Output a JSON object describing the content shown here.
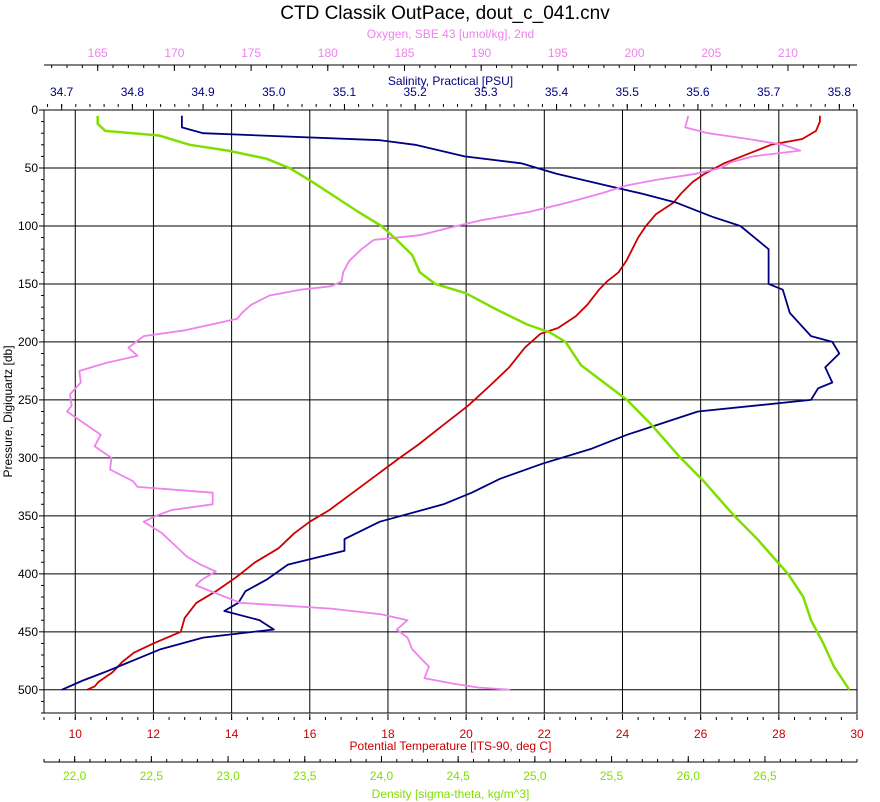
{
  "chart_data": {
    "type": "line",
    "title": "CTD Classik OutPace, dout_c_041.cnv",
    "grid": true,
    "y_axis": {
      "label": "Pressure, Digiquartz [db]",
      "range": [
        0,
        520
      ],
      "reversed": true,
      "ticks": [
        "0",
        "50",
        "100",
        "150",
        "200",
        "250",
        "300",
        "350",
        "400",
        "450",
        "500"
      ],
      "tick_values": [
        0,
        50,
        100,
        150,
        200,
        250,
        300,
        350,
        400,
        450,
        500
      ]
    },
    "x_axes": [
      {
        "id": "oxygen",
        "label": "Oxygen, SBE 43 [umol/kg], 2nd",
        "color": "#ee82ee",
        "position": "top-outer",
        "range": [
          161.5,
          214.5
        ],
        "ticks": [
          "165",
          "170",
          "175",
          "180",
          "185",
          "190",
          "195",
          "200",
          "205",
          "210"
        ],
        "tick_values": [
          165,
          170,
          175,
          180,
          185,
          190,
          195,
          200,
          205,
          210
        ]
      },
      {
        "id": "salinity",
        "label": "Salinity, Practical [PSU]",
        "color": "#000080",
        "position": "top-inner",
        "range": [
          34.675,
          35.825
        ],
        "ticks": [
          "34.7",
          "34.8",
          "34.9",
          "35.0",
          "35.1",
          "35.2",
          "35.3",
          "35.4",
          "35.5",
          "35.6",
          "35.7",
          "35.8"
        ],
        "tick_values": [
          34.7,
          34.8,
          34.9,
          35.0,
          35.1,
          35.2,
          35.3,
          35.4,
          35.5,
          35.6,
          35.7,
          35.8
        ]
      },
      {
        "id": "temperature",
        "label": "Potential Temperature [ITS-90, deg C]",
        "color": "#cc0000",
        "position": "bottom-inner",
        "range": [
          9.2,
          30
        ],
        "ticks": [
          "10",
          "12",
          "14",
          "16",
          "18",
          "20",
          "22",
          "24",
          "26",
          "28",
          "30"
        ],
        "tick_values": [
          10,
          12,
          14,
          16,
          18,
          20,
          22,
          24,
          26,
          28,
          30
        ]
      },
      {
        "id": "density",
        "label": "Density [sigma-theta, kg/m^3]",
        "color": "#7fe000",
        "position": "bottom-outer",
        "range": [
          21.8,
          27.1
        ],
        "ticks": [
          "22,0",
          "22,5",
          "23,0",
          "23,5",
          "24,0",
          "24,5",
          "25,0",
          "25,5",
          "26,0",
          "26,5"
        ],
        "tick_values": [
          22.0,
          22.5,
          23.0,
          23.5,
          24.0,
          24.5,
          25.0,
          25.5,
          26.0,
          26.5
        ]
      }
    ],
    "series": [
      {
        "axis": "temperature",
        "color": "#cc0000",
        "points": [
          [
            29.05,
            5
          ],
          [
            29.05,
            10
          ],
          [
            28.95,
            18
          ],
          [
            28.6,
            25
          ],
          [
            27.8,
            30
          ],
          [
            27.2,
            38
          ],
          [
            26.6,
            46
          ],
          [
            26.1,
            55
          ],
          [
            25.8,
            62
          ],
          [
            25.5,
            72
          ],
          [
            25.3,
            80
          ],
          [
            24.85,
            90
          ],
          [
            24.6,
            100
          ],
          [
            24.4,
            110
          ],
          [
            24.25,
            120
          ],
          [
            24.1,
            130
          ],
          [
            23.9,
            140
          ],
          [
            23.6,
            148
          ],
          [
            23.4,
            155
          ],
          [
            23.1,
            168
          ],
          [
            22.8,
            178
          ],
          [
            22.35,
            188
          ],
          [
            21.9,
            193
          ],
          [
            21.5,
            205
          ],
          [
            21.1,
            222
          ],
          [
            20.6,
            238
          ],
          [
            20.05,
            255
          ],
          [
            19.4,
            272
          ],
          [
            18.8,
            288
          ],
          [
            18.3,
            300
          ],
          [
            17.7,
            315
          ],
          [
            17.1,
            330
          ],
          [
            16.5,
            345
          ],
          [
            16.0,
            355
          ],
          [
            15.6,
            365
          ],
          [
            15.2,
            378
          ],
          [
            14.6,
            390
          ],
          [
            14.15,
            402
          ],
          [
            13.6,
            415
          ],
          [
            13.1,
            425
          ],
          [
            12.8,
            438
          ],
          [
            12.7,
            450
          ],
          [
            12.0,
            460
          ],
          [
            11.5,
            468
          ],
          [
            11.2,
            476
          ],
          [
            10.95,
            485
          ],
          [
            10.6,
            493
          ],
          [
            10.5,
            497
          ],
          [
            10.3,
            500
          ]
        ]
      },
      {
        "axis": "salinity",
        "color": "#000080",
        "points": [
          [
            34.87,
            5
          ],
          [
            34.87,
            15
          ],
          [
            34.9,
            20
          ],
          [
            35.15,
            26
          ],
          [
            35.2,
            30
          ],
          [
            35.27,
            40
          ],
          [
            35.35,
            46
          ],
          [
            35.4,
            55
          ],
          [
            35.47,
            65
          ],
          [
            35.52,
            72
          ],
          [
            35.57,
            80
          ],
          [
            35.62,
            92
          ],
          [
            35.66,
            100
          ],
          [
            35.68,
            110
          ],
          [
            35.7,
            120
          ],
          [
            35.7,
            135
          ],
          [
            35.7,
            150
          ],
          [
            35.72,
            155
          ],
          [
            35.73,
            175
          ],
          [
            35.745,
            185
          ],
          [
            35.76,
            195
          ],
          [
            35.79,
            200
          ],
          [
            35.8,
            210
          ],
          [
            35.78,
            222
          ],
          [
            35.79,
            235
          ],
          [
            35.77,
            240
          ],
          [
            35.76,
            250
          ],
          [
            35.6,
            260
          ],
          [
            35.55,
            270
          ],
          [
            35.5,
            280
          ],
          [
            35.45,
            292
          ],
          [
            35.38,
            305
          ],
          [
            35.32,
            318
          ],
          [
            35.28,
            330
          ],
          [
            35.24,
            340
          ],
          [
            35.15,
            355
          ],
          [
            35.1,
            370
          ],
          [
            35.1,
            380
          ],
          [
            35.02,
            392
          ],
          [
            34.99,
            405
          ],
          [
            34.96,
            415
          ],
          [
            34.95,
            425
          ],
          [
            34.93,
            432
          ],
          [
            34.98,
            440
          ],
          [
            35.0,
            448
          ],
          [
            34.9,
            455
          ],
          [
            34.84,
            465
          ],
          [
            34.8,
            475
          ],
          [
            34.76,
            485
          ],
          [
            34.73,
            492
          ],
          [
            34.7,
            500
          ]
        ]
      },
      {
        "axis": "oxygen",
        "color": "#ee82ee",
        "points": [
          [
            203.5,
            5
          ],
          [
            203.3,
            15
          ],
          [
            204.8,
            20
          ],
          [
            207.4,
            25
          ],
          [
            209.7,
            30
          ],
          [
            210.8,
            35
          ],
          [
            207.7,
            40
          ],
          [
            206.3,
            45
          ],
          [
            205.6,
            50
          ],
          [
            204.0,
            55
          ],
          [
            201.5,
            60
          ],
          [
            199.5,
            65
          ],
          [
            197.8,
            72
          ],
          [
            195.6,
            80
          ],
          [
            193.1,
            88
          ],
          [
            190.0,
            95
          ],
          [
            187.8,
            102
          ],
          [
            186.0,
            108
          ],
          [
            183.0,
            112
          ],
          [
            182.2,
            120
          ],
          [
            181.4,
            130
          ],
          [
            181.0,
            140
          ],
          [
            180.9,
            148
          ],
          [
            180.2,
            152
          ],
          [
            178.2,
            155
          ],
          [
            176.2,
            160
          ],
          [
            175.0,
            168
          ],
          [
            174.4,
            175
          ],
          [
            174.1,
            180
          ],
          [
            170.7,
            190
          ],
          [
            168.0,
            195
          ],
          [
            167.0,
            205
          ],
          [
            167.6,
            212
          ],
          [
            165.6,
            218
          ],
          [
            163.8,
            225
          ],
          [
            163.9,
            235
          ],
          [
            163.2,
            245
          ],
          [
            163.3,
            255
          ],
          [
            163.0,
            260
          ],
          [
            164.1,
            270
          ],
          [
            165.2,
            280
          ],
          [
            164.8,
            290
          ],
          [
            165.9,
            300
          ],
          [
            165.8,
            310
          ],
          [
            167.3,
            320
          ],
          [
            167.6,
            325
          ],
          [
            172.5,
            330
          ],
          [
            172.5,
            340
          ],
          [
            169.8,
            345
          ],
          [
            168.8,
            350
          ],
          [
            168.0,
            355
          ],
          [
            169.2,
            365
          ],
          [
            170.0,
            375
          ],
          [
            170.8,
            385
          ],
          [
            171.7,
            392
          ],
          [
            172.7,
            398
          ],
          [
            171.8,
            405
          ],
          [
            171.4,
            410
          ],
          [
            174.3,
            425
          ],
          [
            180.2,
            430
          ],
          [
            183.5,
            435
          ],
          [
            185.2,
            440
          ],
          [
            184.5,
            448
          ],
          [
            185.2,
            455
          ],
          [
            185.5,
            465
          ],
          [
            186.0,
            472
          ],
          [
            186.6,
            480
          ],
          [
            186.3,
            490
          ],
          [
            188.3,
            495
          ],
          [
            189.8,
            498
          ],
          [
            191.9,
            500
          ]
        ]
      },
      {
        "axis": "density",
        "color": "#7fe000",
        "points": [
          [
            22.15,
            5
          ],
          [
            22.15,
            12
          ],
          [
            22.2,
            18
          ],
          [
            22.55,
            22
          ],
          [
            22.75,
            30
          ],
          [
            23.0,
            35
          ],
          [
            23.25,
            42
          ],
          [
            23.4,
            50
          ],
          [
            23.55,
            62
          ],
          [
            23.7,
            75
          ],
          [
            23.85,
            88
          ],
          [
            24.0,
            100
          ],
          [
            24.1,
            112
          ],
          [
            24.2,
            125
          ],
          [
            24.25,
            140
          ],
          [
            24.35,
            150
          ],
          [
            24.55,
            158
          ],
          [
            24.75,
            172
          ],
          [
            24.95,
            185
          ],
          [
            25.1,
            192
          ],
          [
            25.2,
            200
          ],
          [
            25.3,
            220
          ],
          [
            25.45,
            235
          ],
          [
            25.6,
            250
          ],
          [
            25.75,
            270
          ],
          [
            25.85,
            285
          ],
          [
            25.95,
            300
          ],
          [
            26.1,
            320
          ],
          [
            26.2,
            335
          ],
          [
            26.3,
            350
          ],
          [
            26.45,
            370
          ],
          [
            26.55,
            385
          ],
          [
            26.65,
            400
          ],
          [
            26.75,
            420
          ],
          [
            26.8,
            440
          ],
          [
            26.88,
            460
          ],
          [
            26.95,
            480
          ],
          [
            27.05,
            500
          ]
        ]
      }
    ]
  }
}
